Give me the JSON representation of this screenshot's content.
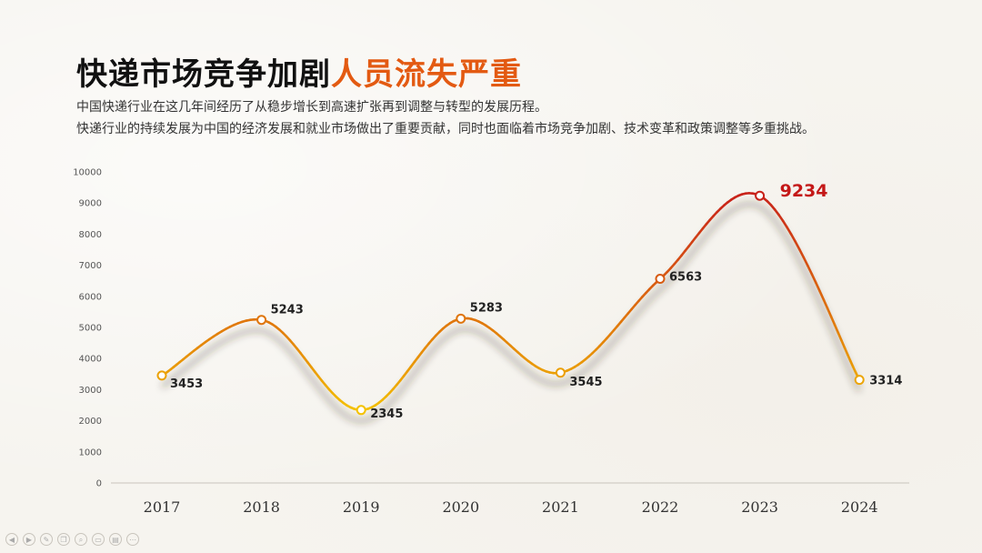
{
  "title": {
    "main": "快递市场竞争加剧",
    "accent": "人员流失严重"
  },
  "description": [
    "中国快递行业在这几年间经历了从稳步增长到高速扩张再到调整与转型的发展历程。",
    "快递行业的持续发展为中国的经济发展和就业市场做出了重要贡献，同时也面临着市场竞争加剧、技术变革和政策调整等多重挑战。"
  ],
  "colors": {
    "accent": "#e35a12",
    "line_low": "#f5c400",
    "line_high": "#c8221a",
    "highlight_label": "#c41818"
  },
  "toolbar": {
    "icons": [
      "prev-icon",
      "next-icon",
      "pen-icon",
      "copy-icon",
      "zoom-icon",
      "screen-icon",
      "view-icon",
      "more-icon"
    ]
  },
  "chart_data": {
    "type": "line",
    "categories": [
      "2017",
      "2018",
      "2019",
      "2020",
      "2021",
      "2022",
      "2023",
      "2024"
    ],
    "values": [
      3453,
      5243,
      2345,
      5283,
      3545,
      6563,
      9234,
      3314
    ],
    "data_labels": [
      "3453",
      "5243",
      "2345",
      "5283",
      "3545",
      "6563",
      "9234",
      "3314"
    ],
    "highlight": "2023",
    "ylim": [
      0,
      10000
    ],
    "yticks": [
      0,
      1000,
      2000,
      3000,
      4000,
      5000,
      6000,
      7000,
      8000,
      9000,
      10000
    ],
    "ytick_labels": [
      "0",
      "1000",
      "2000",
      "3000",
      "4000",
      "5000",
      "6000",
      "7000",
      "8000",
      "9000",
      "10000"
    ],
    "grid": false,
    "smooth": true
  }
}
